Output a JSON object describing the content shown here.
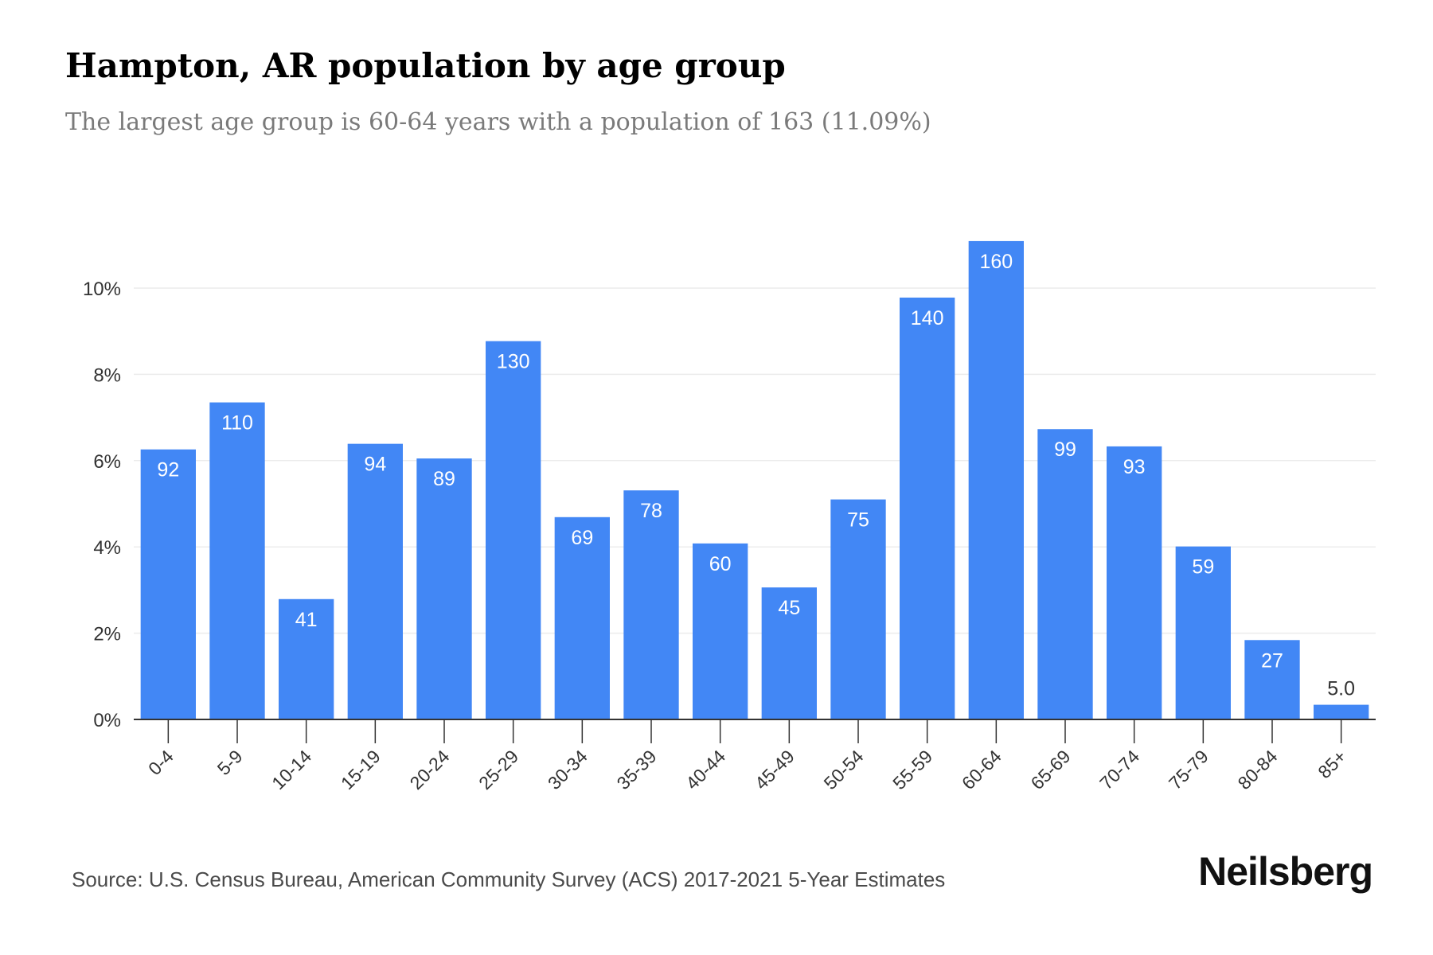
{
  "header": {
    "title": "Hampton, AR population by age group",
    "subtitle": "The largest age group is 60-64 years with a population of 163 (11.09%)"
  },
  "footer": {
    "source": "Source: U.S. Census Bureau, American Community Survey (ACS) 2017-2021 5-Year Estimates",
    "logo": "Neilsberg"
  },
  "colors": {
    "bar": "#4287f5",
    "bar_label": "#ffffff",
    "outside_label": "#333333",
    "grid": "#ececec",
    "axis": "#333333",
    "tick_text": "#333333"
  },
  "chart_data": {
    "type": "bar",
    "categories": [
      "0-4",
      "5-9",
      "10-14",
      "15-19",
      "20-24",
      "25-29",
      "30-34",
      "35-39",
      "40-44",
      "45-49",
      "50-54",
      "55-59",
      "60-64",
      "65-69",
      "70-74",
      "75-79",
      "80-84",
      "85+"
    ],
    "values": [
      6.26,
      7.35,
      2.79,
      6.39,
      6.05,
      8.77,
      4.69,
      5.31,
      4.08,
      3.06,
      5.1,
      9.78,
      11.09,
      6.73,
      6.33,
      4.01,
      1.84,
      0.34
    ],
    "data_labels": [
      "92",
      "110",
      "41",
      "94",
      "89",
      "130",
      "69",
      "78",
      "60",
      "45",
      "75",
      "140",
      "160",
      "99",
      "93",
      "59",
      "27",
      "5.0"
    ],
    "y_ticks": [
      0,
      2,
      4,
      6,
      8,
      10
    ],
    "y_tick_labels": [
      "0%",
      "2%",
      "4%",
      "6%",
      "8%",
      "10%"
    ],
    "ylim": [
      0,
      11.5
    ],
    "grid": true,
    "legend": "none"
  }
}
